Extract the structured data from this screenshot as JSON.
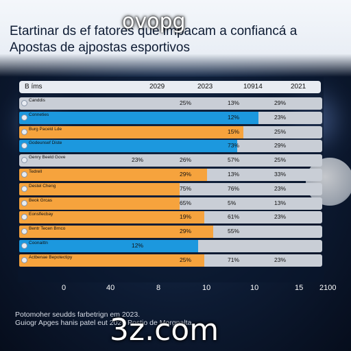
{
  "title_lines": [
    "Etartinar ds ef fatores que impacam a confiancá a",
    "Apostas de ajpostas esportivos"
  ],
  "overlay_top": "ovopg",
  "overlay_bottom": "3z.com",
  "footnote_lines": [
    "Potomoher seudds farbetrign em 2023.",
    "Guiogr Apges hanis patel eut 2020 Postio de Morgnalta"
  ],
  "chart_data": {
    "type": "bar",
    "orientation": "horizontal",
    "header": {
      "left": "B íms",
      "columns": [
        "2029",
        "2023",
        "10914",
        "2021"
      ]
    },
    "x_ticks": [
      "0",
      "40",
      "8",
      "10",
      "10",
      "15",
      "2100"
    ],
    "xlim": [
      0,
      100
    ],
    "rows": [
      {
        "label": "Canddis",
        "value": 0,
        "color": "#f6a33d",
        "cells": [
          "",
          "25%",
          "13%",
          "29%"
        ]
      },
      {
        "label": "Conneties",
        "value": 79,
        "color": "#1c98de",
        "cells": [
          "",
          "",
          "12%",
          "23%"
        ]
      },
      {
        "label": "Burg Paceld Lde",
        "value": 74,
        "color": "#f6a33d",
        "cells": [
          "",
          "",
          "15%",
          "25%"
        ]
      },
      {
        "label": "Godeunsef Diste",
        "value": 72,
        "color": "#1c98de",
        "cells": [
          "",
          "",
          "73%",
          "29%"
        ]
      },
      {
        "label": "Genry Beeld Gove",
        "value": 0,
        "color": "#f6a33d",
        "cells": [
          "23%",
          "26%",
          "57%",
          "25%"
        ]
      },
      {
        "label": "Tedrell",
        "value": 62,
        "color": "#f6a33d",
        "cells": [
          "",
          "29%",
          "13%",
          "33%"
        ]
      },
      {
        "label": "Destel Cheng",
        "value": 53,
        "color": "#f6a33d",
        "cells": [
          "",
          "75%",
          "76%",
          "23%"
        ]
      },
      {
        "label": "Beok Grcas",
        "value": 53,
        "color": "#f6a33d",
        "cells": [
          "",
          "65%",
          "5%",
          "13%"
        ]
      },
      {
        "label": "Eonsflecbay",
        "value": 61,
        "color": "#f6a33d",
        "cells": [
          "",
          "19%",
          "61%",
          "23%"
        ]
      },
      {
        "label": "Bentr Tecen Brnco",
        "value": 64,
        "color": "#f6a33d",
        "cells": [
          "",
          "29%",
          "55%",
          ""
        ]
      },
      {
        "label": "Coonaittn",
        "value": 59,
        "color": "#1c98de",
        "cells": [
          "12%",
          "",
          "",
          ""
        ]
      },
      {
        "label": "Actbenae Bepotectipy",
        "value": 61,
        "color": "#f6a33d",
        "cells": [
          "",
          "25%",
          "71%",
          "23%"
        ]
      }
    ]
  }
}
